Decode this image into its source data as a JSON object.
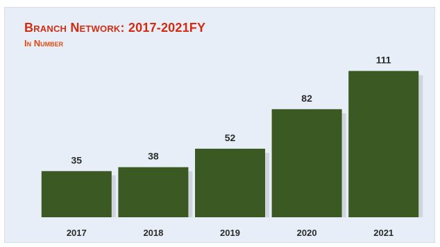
{
  "chart_data": {
    "type": "bar",
    "title": "Branch Network: 2017-2021FY",
    "subtitle": "In Number",
    "categories": [
      "2017",
      "2018",
      "2019",
      "2020",
      "2021"
    ],
    "values": [
      35,
      38,
      52,
      82,
      111
    ],
    "xlabel": "",
    "ylabel": "",
    "ylim": [
      0,
      130
    ],
    "grid": false,
    "legend": "none",
    "colors": {
      "bar": "#3b5a23",
      "title": "#d22b10",
      "subtitle": "#e04b12",
      "background": "#e8eef7",
      "text": "#2b2b2b"
    }
  }
}
